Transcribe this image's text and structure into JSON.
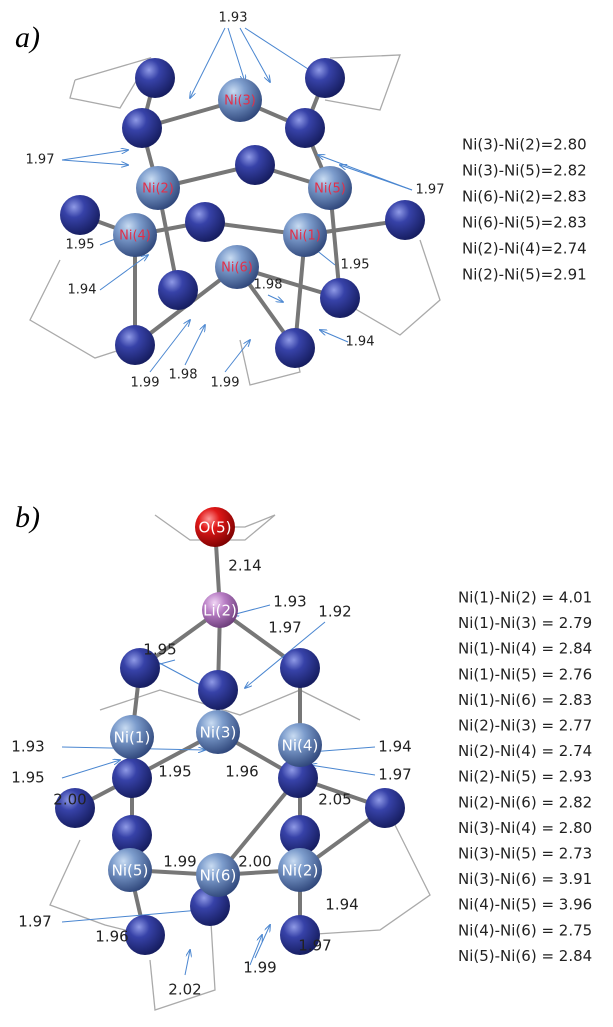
{
  "panels": [
    {
      "label": "a)",
      "atoms": [
        "Ni(3)",
        "Ni(2)",
        "Ni(5)",
        "Ni(4)",
        "Ni(1)",
        "Ni(6)"
      ],
      "bond_labels": [
        "1.93",
        "1.97",
        "1.97",
        "1.95",
        "1.95",
        "1.94",
        "1.98",
        "1.94",
        "1.99",
        "1.98",
        "1.99"
      ],
      "distances": [
        "Ni(3)-Ni(2)=2.80",
        "Ni(3)-Ni(5)=2.82",
        "Ni(6)-Ni(2)=2.83",
        "Ni(6)-Ni(5)=2.83",
        "Ni(2)-Ni(4)=2.74",
        "Ni(2)-Ni(5)=2.91"
      ]
    },
    {
      "label": "b)",
      "atoms": [
        "O(5)",
        "Li(2)",
        "Ni(1)",
        "Ni(3)",
        "Ni(4)",
        "Ni(5)",
        "Ni(6)",
        "Ni(2)"
      ],
      "bond_labels": [
        "2.14",
        "1.93",
        "1.95",
        "1.92",
        "1.97",
        "1.93",
        "1.95",
        "1.94",
        "1.97",
        "2.00",
        "1.95",
        "1.96",
        "2.05",
        "1.99",
        "2.00",
        "1.94",
        "1.97",
        "1.96",
        "1.97",
        "2.02",
        "1.99"
      ],
      "distances": [
        "Ni(1)-Ni(2) = 4.01",
        "Ni(1)-Ni(3) = 2.79",
        "Ni(1)-Ni(4) = 2.84",
        "Ni(1)-Ni(5) = 2.76",
        "Ni(1)-Ni(6) = 2.83",
        "Ni(2)-Ni(3) = 2.77",
        "Ni(2)-Ni(4) = 2.74",
        "Ni(2)-Ni(5) = 2.93",
        "Ni(2)-Ni(6) = 2.82",
        "Ni(3)-Ni(4) = 2.80",
        "Ni(3)-Ni(5) = 2.73",
        "Ni(3)-Ni(6) = 3.91",
        "Ni(4)-Ni(5) = 3.96",
        "Ni(4)-Ni(6) = 2.75",
        "Ni(5)-Ni(6) = 2.84"
      ]
    }
  ]
}
